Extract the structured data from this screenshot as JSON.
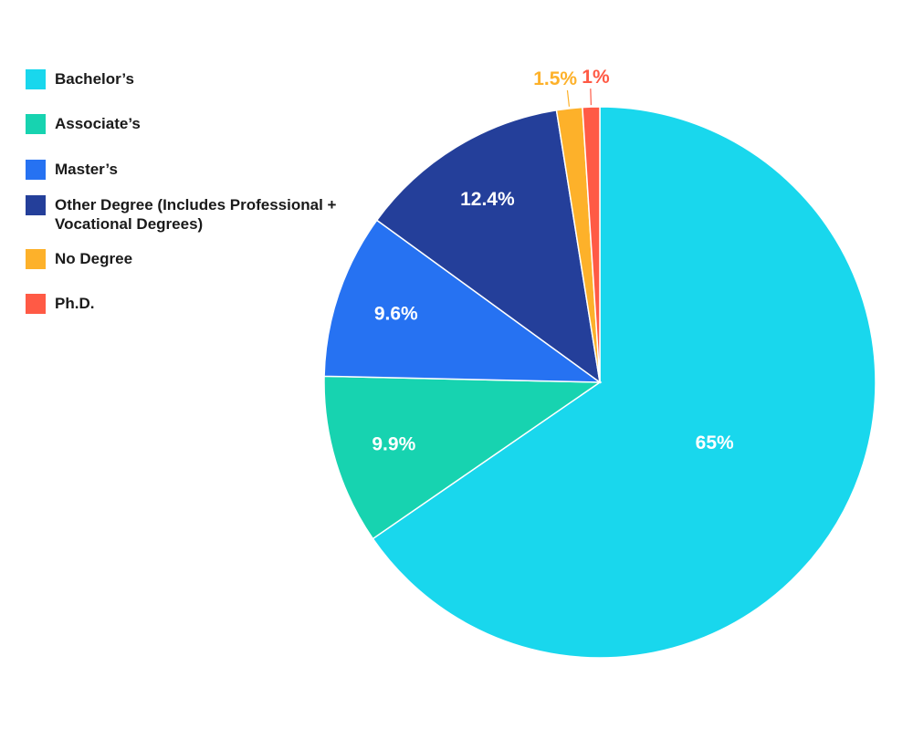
{
  "chart_data": {
    "type": "pie",
    "categories": [
      "Bachelor’s",
      "Associate’s",
      "Master’s",
      "Other Degree (Includes Professional + Vocational Degrees)",
      "No Degree",
      "Ph.D."
    ],
    "values": [
      65,
      9.9,
      9.6,
      12.4,
      1.5,
      1
    ],
    "labels": [
      "65%",
      "9.9%",
      "9.6%",
      "12.4%",
      "1.5%",
      "1%"
    ],
    "colors": [
      "#19d7ed",
      "#17d3b0",
      "#2672f2",
      "#243f9a",
      "#fdb12a",
      "#ff5a45"
    ],
    "legend_position": "top-left"
  }
}
